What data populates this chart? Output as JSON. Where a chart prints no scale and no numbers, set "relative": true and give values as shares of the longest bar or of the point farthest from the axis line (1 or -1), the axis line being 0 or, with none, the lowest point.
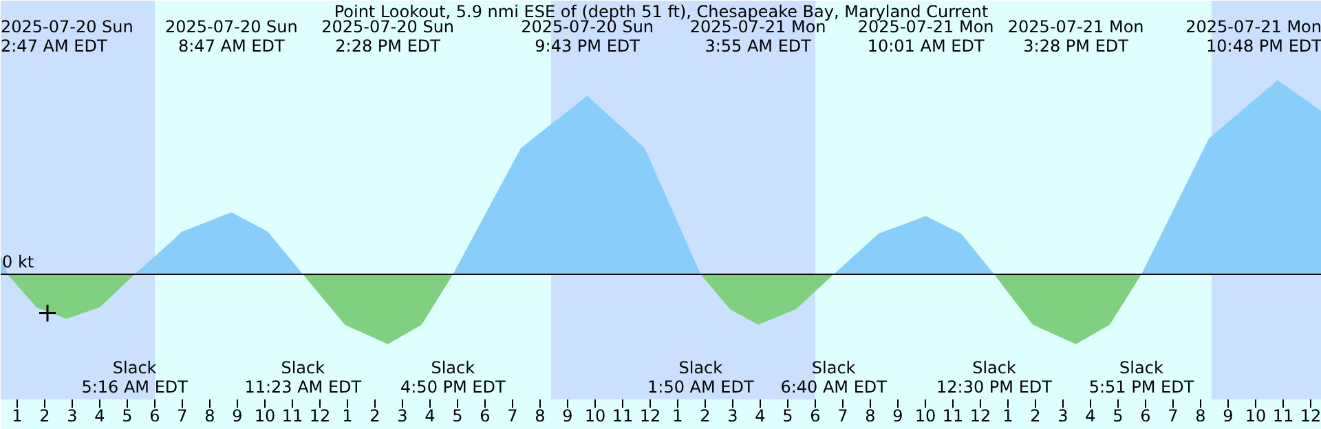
{
  "chart_data": {
    "type": "area",
    "title": "Point Lookout, 5.9 nmi ESE of (depth 51 ft), Chesapeake Bay, Maryland Current",
    "relative": true,
    "xlim": [
      "2025-07-20T00:24",
      "2025-07-22T00:24"
    ],
    "xticks": [
      {
        "value": "2025-07-20T01:00",
        "label": "1"
      },
      {
        "value": "2025-07-20T02:00",
        "label": "2"
      },
      {
        "value": "2025-07-20T03:00",
        "label": "3"
      },
      {
        "value": "2025-07-20T04:00",
        "label": "4"
      },
      {
        "value": "2025-07-20T05:00",
        "label": "5"
      },
      {
        "value": "2025-07-20T06:00",
        "label": "6"
      },
      {
        "value": "2025-07-20T07:00",
        "label": "7"
      },
      {
        "value": "2025-07-20T08:00",
        "label": "8"
      },
      {
        "value": "2025-07-20T09:00",
        "label": "9"
      },
      {
        "value": "2025-07-20T10:00",
        "label": "10"
      },
      {
        "value": "2025-07-20T11:00",
        "label": "11"
      },
      {
        "value": "2025-07-20T12:00",
        "label": "12"
      },
      {
        "value": "2025-07-20T13:00",
        "label": "1"
      },
      {
        "value": "2025-07-20T14:00",
        "label": "2"
      },
      {
        "value": "2025-07-20T15:00",
        "label": "3"
      },
      {
        "value": "2025-07-20T16:00",
        "label": "4"
      },
      {
        "value": "2025-07-20T17:00",
        "label": "5"
      },
      {
        "value": "2025-07-20T18:00",
        "label": "6"
      },
      {
        "value": "2025-07-20T19:00",
        "label": "7"
      },
      {
        "value": "2025-07-20T20:00",
        "label": "8"
      },
      {
        "value": "2025-07-20T21:00",
        "label": "9"
      },
      {
        "value": "2025-07-20T22:00",
        "label": "10"
      },
      {
        "value": "2025-07-20T23:00",
        "label": "11"
      },
      {
        "value": "2025-07-21T00:00",
        "label": "12"
      },
      {
        "value": "2025-07-21T01:00",
        "label": "1"
      },
      {
        "value": "2025-07-21T02:00",
        "label": "2"
      },
      {
        "value": "2025-07-21T03:00",
        "label": "3"
      },
      {
        "value": "2025-07-21T04:00",
        "label": "4"
      },
      {
        "value": "2025-07-21T05:00",
        "label": "5"
      },
      {
        "value": "2025-07-21T06:00",
        "label": "6"
      },
      {
        "value": "2025-07-21T07:00",
        "label": "7"
      },
      {
        "value": "2025-07-21T08:00",
        "label": "8"
      },
      {
        "value": "2025-07-21T09:00",
        "label": "9"
      },
      {
        "value": "2025-07-21T10:00",
        "label": "10"
      },
      {
        "value": "2025-07-21T11:00",
        "label": "11"
      },
      {
        "value": "2025-07-21T12:00",
        "label": "12"
      },
      {
        "value": "2025-07-21T13:00",
        "label": "1"
      },
      {
        "value": "2025-07-21T14:00",
        "label": "2"
      },
      {
        "value": "2025-07-21T15:00",
        "label": "3"
      },
      {
        "value": "2025-07-21T16:00",
        "label": "4"
      },
      {
        "value": "2025-07-21T17:00",
        "label": "5"
      },
      {
        "value": "2025-07-21T18:00",
        "label": "6"
      },
      {
        "value": "2025-07-21T19:00",
        "label": "7"
      },
      {
        "value": "2025-07-21T20:00",
        "label": "8"
      },
      {
        "value": "2025-07-21T21:00",
        "label": "9"
      },
      {
        "value": "2025-07-21T22:00",
        "label": "10"
      },
      {
        "value": "2025-07-21T23:00",
        "label": "11"
      },
      {
        "value": "2025-07-22T00:00",
        "label": "12"
      }
    ],
    "series": [
      {
        "color": "#87cefa",
        "x": [
          "2025-07-20T00:24",
          "2025-07-20T00:39",
          "2025-07-20T05:16",
          "2025-07-20T07:00",
          "2025-07-20T08:47",
          "2025-07-20T10:06",
          "2025-07-20T11:23",
          "2025-07-20T16:50",
          "2025-07-20T19:18",
          "2025-07-20T21:43",
          "2025-07-20T23:48",
          "2025-07-21T01:50",
          "2025-07-21T06:40",
          "2025-07-21T08:18",
          "2025-07-21T10:01",
          "2025-07-21T11:18",
          "2025-07-21T12:30",
          "2025-07-21T17:51",
          "2025-07-21T20:18",
          "2025-07-21T22:48",
          "2025-07-22T00:24"
        ],
        "values": [
          0.1,
          0,
          0,
          0.22,
          0.32,
          0.22,
          0,
          0,
          0.65,
          0.92,
          0.65,
          0,
          0,
          0.21,
          0.3,
          0.21,
          0,
          0,
          0.7,
          1,
          0.84
        ]
      },
      {
        "color": "#7fd07f",
        "x": [
          "2025-07-20T00:39",
          "2025-07-20T01:42",
          "2025-07-20T02:47",
          "2025-07-20T04:00",
          "2025-07-20T05:16",
          "2025-07-20T11:23",
          "2025-07-20T12:54",
          "2025-07-20T14:28",
          "2025-07-20T15:42",
          "2025-07-20T16:50",
          "2025-07-21T01:50",
          "2025-07-21T02:54",
          "2025-07-21T03:55",
          "2025-07-21T05:18",
          "2025-07-21T06:40",
          "2025-07-21T12:30",
          "2025-07-21T13:54",
          "2025-07-21T15:28",
          "2025-07-21T16:42",
          "2025-07-21T17:51"
        ],
        "values": [
          0,
          -0.17,
          -0.23,
          -0.17,
          0,
          0,
          -0.26,
          -0.36,
          -0.26,
          0,
          0,
          -0.18,
          -0.26,
          -0.18,
          0,
          0,
          -0.26,
          -0.36,
          -0.26,
          0
        ]
      },
      {
        "type": "scatter",
        "marker": "cross",
        "color": "#000000",
        "x": [
          "2025-07-20T02:06"
        ],
        "values": [
          -0.2
        ]
      }
    ],
    "ref_lines": [
      {
        "axis": "y",
        "value": 0,
        "label": "0 kt",
        "color": "#000000"
      }
    ],
    "bands": [
      {
        "axis": "x",
        "from": "2025-07-20T00:24",
        "to": "2025-07-20T06:00",
        "color": "#cae0fc"
      },
      {
        "axis": "x",
        "from": "2025-07-20T20:24",
        "to": "2025-07-21T06:00",
        "color": "#cae0fc"
      },
      {
        "axis": "x",
        "from": "2025-07-21T20:24",
        "to": "2025-07-22T00:24",
        "color": "#cae0fc"
      }
    ],
    "annotations": [
      "2025-07-20 Sun\n2:47 AM EDT",
      "2025-07-20 Sun\n8:47 AM EDT",
      "2025-07-20 Sun\n2:28 PM EDT",
      "2025-07-20 Sun\n9:43 PM EDT",
      "2025-07-21 Mon\n3:55 AM EDT",
      "2025-07-21 Mon\n10:01 AM EDT",
      "2025-07-21 Mon\n3:28 PM EDT",
      "2025-07-21 Mon\n10:48 PM EDT",
      "Slack\n5:16 AM EDT",
      "Slack\n11:23 AM EDT",
      "Slack\n4:50 PM EDT",
      "Slack\n1:50 AM EDT",
      "Slack\n6:40 AM EDT",
      "Slack\n12:30 PM EDT",
      "Slack\n5:51 PM EDT"
    ],
    "grid": false
  }
}
